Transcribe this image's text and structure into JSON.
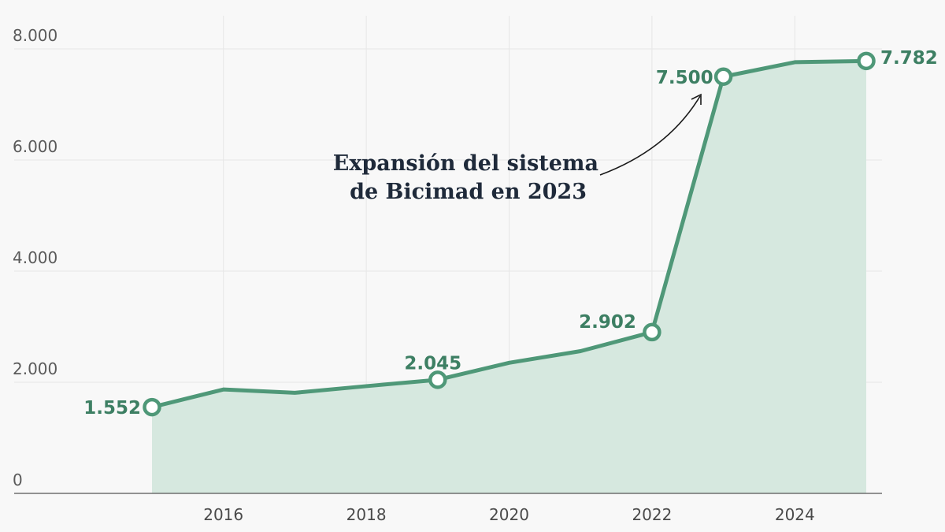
{
  "colors": {
    "series": "#4f9878",
    "label": "#3d7f63",
    "area": "#d6e8df"
  },
  "chart_data": {
    "type": "area",
    "title": "",
    "xlabel": "",
    "ylabel": "",
    "x": [
      2015,
      2016,
      2017,
      2018,
      2019,
      2020,
      2021,
      2022,
      2023,
      2024,
      2025
    ],
    "series": [
      {
        "values": [
          1552,
          1870,
          1810,
          1930,
          2045,
          2350,
          2560,
          2902,
          7500,
          7760,
          7782
        ]
      }
    ],
    "highlighted": [
      {
        "x": 2015,
        "value": 1552,
        "label": "1.552"
      },
      {
        "x": 2019,
        "value": 2045,
        "label": "2.045"
      },
      {
        "x": 2022,
        "value": 2902,
        "label": "2.902"
      },
      {
        "x": 2023,
        "value": 7500,
        "label": "7.500"
      },
      {
        "x": 2025,
        "value": 7782,
        "label": "7.782"
      }
    ],
    "yticks": [
      {
        "value": 0,
        "label": "0"
      },
      {
        "value": 2000,
        "label": "2.000"
      },
      {
        "value": 4000,
        "label": "4.000"
      },
      {
        "value": 6000,
        "label": "6.000"
      },
      {
        "value": 8000,
        "label": "8.000"
      }
    ],
    "xticks": [
      {
        "value": 2016,
        "label": "2016"
      },
      {
        "value": 2018,
        "label": "2018"
      },
      {
        "value": 2020,
        "label": "2020"
      },
      {
        "value": 2022,
        "label": "2022"
      },
      {
        "value": 2024,
        "label": "2024"
      }
    ],
    "ylim": [
      0,
      8000
    ],
    "xlim": [
      2014,
      2026
    ],
    "grid": true,
    "legend": "none",
    "annotation": {
      "lines": [
        "Expansión del sistema",
        "de Bicimad en 2023"
      ],
      "points_to": {
        "x": 2023,
        "value": 7500
      }
    }
  }
}
